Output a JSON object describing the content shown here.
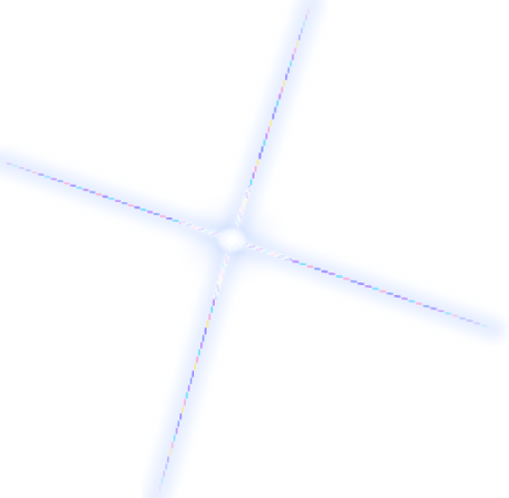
{
  "image": {
    "background": "#ffffff",
    "subject": "lens-flare-cross",
    "colors": {
      "halo": "#c9d9ff",
      "core": "#ffffff",
      "blue": "#5f7dff",
      "cyan": "#39d6ff",
      "violet": "#a45cff",
      "pink": "#ff8fc7",
      "yellow": "#ffe56a",
      "indigo": "#6a4bff"
    }
  }
}
